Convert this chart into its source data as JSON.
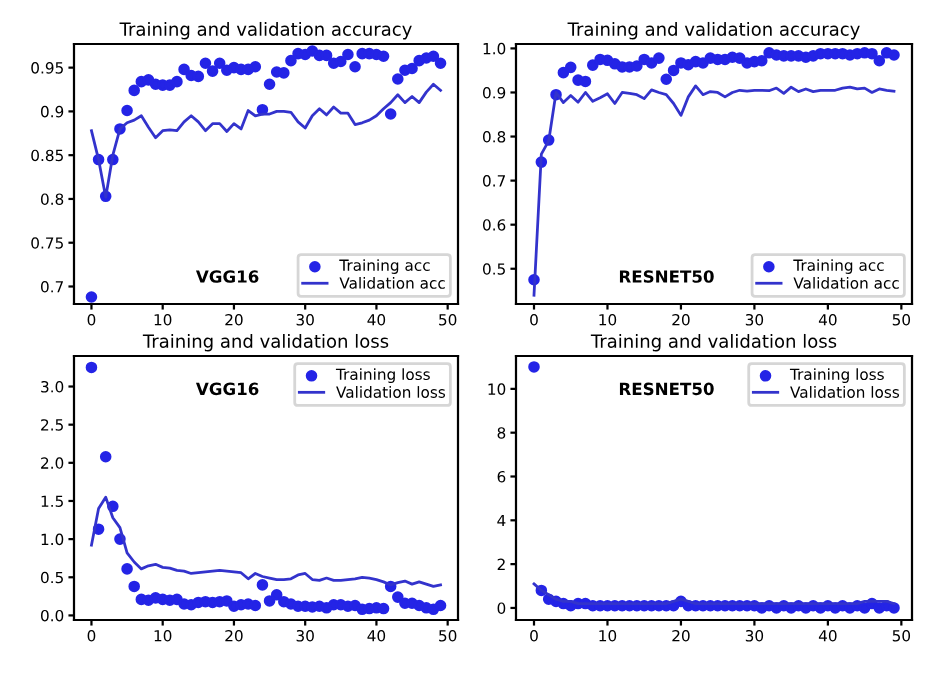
{
  "chart_data": [
    {
      "type": "line",
      "title": "Training and validation accuracy",
      "annotations": [
        "VGG16"
      ],
      "legend": "bottom right",
      "xlim": [
        -2.45,
        51.45
      ],
      "xticks": [
        0,
        10,
        20,
        30,
        40,
        50
      ],
      "ylim": [
        0.68,
        0.977
      ],
      "yticks": [
        0.7,
        0.75,
        0.8,
        0.85,
        0.9,
        0.95
      ],
      "x": [
        0,
        1,
        2,
        3,
        4,
        5,
        6,
        7,
        8,
        9,
        10,
        11,
        12,
        13,
        14,
        15,
        16,
        17,
        18,
        19,
        20,
        21,
        22,
        23,
        24,
        25,
        26,
        27,
        28,
        29,
        30,
        31,
        32,
        33,
        34,
        35,
        36,
        37,
        38,
        39,
        40,
        41,
        42,
        43,
        44,
        45,
        46,
        47,
        48,
        49
      ],
      "series": [
        {
          "name": "Training acc",
          "type": "scatter",
          "marker": "circle",
          "color": "#2424e6",
          "values": [
            0.688,
            0.845,
            0.803,
            0.845,
            0.88,
            0.901,
            0.924,
            0.934,
            0.936,
            0.931,
            0.93,
            0.93,
            0.934,
            0.948,
            0.941,
            0.94,
            0.955,
            0.946,
            0.955,
            0.947,
            0.95,
            0.948,
            0.948,
            0.951,
            0.902,
            0.931,
            0.945,
            0.944,
            0.958,
            0.966,
            0.965,
            0.969,
            0.964,
            0.964,
            0.955,
            0.957,
            0.965,
            0.951,
            0.966,
            0.966,
            0.965,
            0.963,
            0.897,
            0.937,
            0.947,
            0.949,
            0.958,
            0.961,
            0.963,
            0.955
          ]
        },
        {
          "name": "Validation acc",
          "type": "line",
          "color": "#3333cc",
          "values": [
            0.878,
            0.845,
            0.802,
            0.85,
            0.88,
            0.887,
            0.89,
            0.895,
            0.882,
            0.87,
            0.878,
            0.879,
            0.878,
            0.888,
            0.895,
            0.888,
            0.878,
            0.886,
            0.886,
            0.877,
            0.886,
            0.88,
            0.901,
            0.895,
            0.897,
            0.897,
            0.9,
            0.9,
            0.899,
            0.888,
            0.881,
            0.895,
            0.903,
            0.896,
            0.905,
            0.898,
            0.898,
            0.885,
            0.887,
            0.89,
            0.895,
            0.903,
            0.91,
            0.919,
            0.91,
            0.917,
            0.91,
            0.922,
            0.931,
            0.924
          ]
        }
      ]
    },
    {
      "type": "line",
      "title": "Training and validation accuracy",
      "annotations": [
        "RESNET50"
      ],
      "legend": "bottom right",
      "xlim": [
        -2.45,
        51.45
      ],
      "xticks": [
        0,
        10,
        20,
        30,
        40,
        50
      ],
      "ylim": [
        0.42,
        1.01
      ],
      "yticks": [
        0.5,
        0.6,
        0.7,
        0.8,
        0.9,
        {
          "value": 1,
          "label": "1.0"
        }
      ],
      "x": [
        0,
        1,
        2,
        3,
        4,
        5,
        6,
        7,
        8,
        9,
        10,
        11,
        12,
        13,
        14,
        15,
        16,
        17,
        18,
        19,
        20,
        21,
        22,
        23,
        24,
        25,
        26,
        27,
        28,
        29,
        30,
        31,
        32,
        33,
        34,
        35,
        36,
        37,
        38,
        39,
        40,
        41,
        42,
        43,
        44,
        45,
        46,
        47,
        48,
        49
      ],
      "series": [
        {
          "name": "Training acc",
          "type": "scatter",
          "marker": "circle",
          "color": "#2424e6",
          "values": [
            0.475,
            0.742,
            0.792,
            0.895,
            0.945,
            0.957,
            0.928,
            0.925,
            0.962,
            0.975,
            0.973,
            0.965,
            0.958,
            0.958,
            0.96,
            0.975,
            0.967,
            0.978,
            0.93,
            0.95,
            0.967,
            0.963,
            0.97,
            0.967,
            0.978,
            0.975,
            0.975,
            0.98,
            0.978,
            0.967,
            0.97,
            0.972,
            0.99,
            0.985,
            0.983,
            0.983,
            0.983,
            0.98,
            0.983,
            0.988,
            0.988,
            0.988,
            0.988,
            0.985,
            0.988,
            0.99,
            0.988,
            0.972,
            0.99,
            0.985
          ]
        },
        {
          "name": "Validation acc",
          "type": "line",
          "color": "#3333cc",
          "values": [
            0.44,
            0.76,
            0.79,
            0.9,
            0.877,
            0.893,
            0.878,
            0.9,
            0.88,
            0.888,
            0.897,
            0.875,
            0.9,
            0.898,
            0.895,
            0.886,
            0.906,
            0.9,
            0.895,
            0.875,
            0.848,
            0.89,
            0.915,
            0.895,
            0.902,
            0.9,
            0.89,
            0.9,
            0.905,
            0.903,
            0.905,
            0.905,
            0.904,
            0.91,
            0.898,
            0.912,
            0.902,
            0.908,
            0.902,
            0.905,
            0.905,
            0.905,
            0.91,
            0.912,
            0.908,
            0.91,
            0.9,
            0.908,
            0.905,
            0.903
          ]
        }
      ]
    },
    {
      "type": "line",
      "title": "Training and validation loss",
      "annotations": [
        "VGG16"
      ],
      "legend": "top right",
      "xlim": [
        -2.45,
        51.45
      ],
      "xticks": [
        0,
        10,
        20,
        30,
        40,
        50
      ],
      "ylim": [
        -0.06,
        3.4
      ],
      "yticks": [
        {
          "value": 0,
          "label": "0.0"
        },
        0.5,
        {
          "value": 1,
          "label": "1.0"
        },
        1.5,
        {
          "value": 2,
          "label": "2.0"
        },
        2.5,
        {
          "value": 3,
          "label": "3.0"
        }
      ],
      "x": [
        0,
        1,
        2,
        3,
        4,
        5,
        6,
        7,
        8,
        9,
        10,
        11,
        12,
        13,
        14,
        15,
        16,
        17,
        18,
        19,
        20,
        21,
        22,
        23,
        24,
        25,
        26,
        27,
        28,
        29,
        30,
        31,
        32,
        33,
        34,
        35,
        36,
        37,
        38,
        39,
        40,
        41,
        42,
        43,
        44,
        45,
        46,
        47,
        48,
        49
      ],
      "series": [
        {
          "name": "Training loss",
          "type": "scatter",
          "marker": "circle",
          "color": "#2424e6",
          "values": [
            3.25,
            1.13,
            2.08,
            1.43,
            1.0,
            0.61,
            0.38,
            0.21,
            0.2,
            0.23,
            0.21,
            0.2,
            0.21,
            0.15,
            0.14,
            0.17,
            0.18,
            0.17,
            0.18,
            0.19,
            0.12,
            0.14,
            0.15,
            0.13,
            0.4,
            0.19,
            0.27,
            0.18,
            0.15,
            0.12,
            0.12,
            0.11,
            0.12,
            0.1,
            0.14,
            0.14,
            0.12,
            0.13,
            0.08,
            0.09,
            0.1,
            0.09,
            0.38,
            0.24,
            0.16,
            0.16,
            0.13,
            0.1,
            0.08,
            0.13
          ]
        },
        {
          "name": "Validation loss",
          "type": "line",
          "color": "#3333cc",
          "values": [
            0.92,
            1.4,
            1.55,
            1.28,
            1.15,
            0.82,
            0.7,
            0.61,
            0.65,
            0.67,
            0.63,
            0.62,
            0.59,
            0.58,
            0.55,
            0.56,
            0.57,
            0.58,
            0.59,
            0.58,
            0.57,
            0.56,
            0.48,
            0.55,
            0.51,
            0.49,
            0.47,
            0.47,
            0.48,
            0.53,
            0.55,
            0.47,
            0.46,
            0.49,
            0.46,
            0.46,
            0.47,
            0.48,
            0.5,
            0.49,
            0.47,
            0.44,
            0.4,
            0.43,
            0.45,
            0.41,
            0.44,
            0.41,
            0.38,
            0.4
          ]
        }
      ]
    },
    {
      "type": "line",
      "title": "Training and validation loss",
      "annotations": [
        "RESNET50"
      ],
      "legend": "top right",
      "xlim": [
        -2.45,
        51.45
      ],
      "xticks": [
        0,
        10,
        20,
        30,
        40,
        50
      ],
      "ylim": [
        -0.55,
        11.5
      ],
      "yticks": [
        0,
        2,
        4,
        6,
        8,
        10
      ],
      "x": [
        0,
        1,
        2,
        3,
        4,
        5,
        6,
        7,
        8,
        9,
        10,
        11,
        12,
        13,
        14,
        15,
        16,
        17,
        18,
        19,
        20,
        21,
        22,
        23,
        24,
        25,
        26,
        27,
        28,
        29,
        30,
        31,
        32,
        33,
        34,
        35,
        36,
        37,
        38,
        39,
        40,
        41,
        42,
        43,
        44,
        45,
        46,
        47,
        48,
        49
      ],
      "series": [
        {
          "name": "Training loss",
          "type": "scatter",
          "marker": "circle",
          "color": "#2424e6",
          "values": [
            11.0,
            0.8,
            0.4,
            0.3,
            0.2,
            0.1,
            0.2,
            0.2,
            0.1,
            0.1,
            0.1,
            0.1,
            0.1,
            0.1,
            0.1,
            0.1,
            0.1,
            0.1,
            0.1,
            0.1,
            0.3,
            0.1,
            0.1,
            0.1,
            0.1,
            0.1,
            0.1,
            0.1,
            0.1,
            0.1,
            0.1,
            0.0,
            0.1,
            0.0,
            0.1,
            0.0,
            0.1,
            0.0,
            0.1,
            0.0,
            0.1,
            0.0,
            0.1,
            0.0,
            0.1,
            0.0,
            0.2,
            0.0,
            0.1,
            0.0
          ]
        },
        {
          "name": "Validation loss",
          "type": "line",
          "color": "#3333cc",
          "values": [
            1.1,
            0.8,
            0.6,
            0.4,
            0.3,
            0.3,
            0.2,
            0.2,
            0.2,
            0.2,
            0.2,
            0.2,
            0.2,
            0.2,
            0.2,
            0.2,
            0.2,
            0.2,
            0.2,
            0.3,
            0.4,
            0.3,
            0.2,
            0.2,
            0.2,
            0.2,
            0.2,
            0.2,
            0.2,
            0.2,
            0.2,
            0.2,
            0.2,
            0.2,
            0.2,
            0.2,
            0.2,
            0.2,
            0.2,
            0.2,
            0.2,
            0.2,
            0.2,
            0.2,
            0.2,
            0.3,
            0.3,
            0.3,
            0.3,
            0.2
          ]
        }
      ]
    }
  ]
}
